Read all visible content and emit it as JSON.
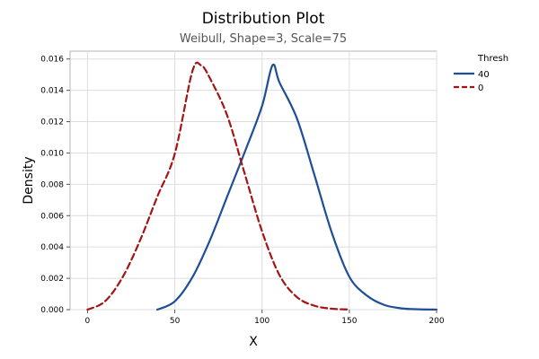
{
  "chart_data": {
    "type": "line",
    "title": "Distribution Plot",
    "subtitle": "Weibull, Shape=3, Scale=75",
    "xlabel": "X",
    "ylabel": "Density",
    "xlim": [
      -10,
      200
    ],
    "ylim": [
      0,
      0.0165
    ],
    "x_ticks": [
      0,
      50,
      100,
      150,
      200
    ],
    "y_ticks": [
      0,
      0.002,
      0.004,
      0.006,
      0.008,
      0.01,
      0.012,
      0.014,
      0.016
    ],
    "x_tick_labels": [
      "0",
      "50",
      "100",
      "150",
      "200"
    ],
    "y_tick_labels": [
      "0.000",
      "0.002",
      "0.004",
      "0.006",
      "0.008",
      "0.010",
      "0.012",
      "0.014",
      "0.016"
    ],
    "grid": true,
    "legend": {
      "title": "Thresh",
      "placement": "right"
    },
    "series": [
      {
        "name": "40",
        "color": "#1f4e96",
        "style": "solid",
        "x": [
          40,
          50,
          60,
          70,
          80,
          90,
          100,
          106,
          110,
          120,
          130,
          140,
          150,
          160,
          170,
          180,
          190,
          200
        ],
        "y": [
          0,
          0.000529,
          0.002051,
          0.004396,
          0.007215,
          0.010034,
          0.012999,
          0.0156,
          0.0145,
          0.0122,
          0.0086,
          0.0049,
          0.0021,
          0.0009,
          0.0003,
          8e-05,
          2e-05,
          3e-06
        ]
      },
      {
        "name": "0",
        "color": "#a31515",
        "style": "dashed",
        "x": [
          0,
          10,
          20,
          30,
          40,
          50,
          60,
          65,
          70,
          80,
          90,
          100,
          110,
          120,
          130,
          140,
          150
        ],
        "y": [
          0,
          0.000529,
          0.002051,
          0.004396,
          0.007215,
          0.009952,
          0.01519,
          0.0156,
          0.0148,
          0.0124,
          0.0087,
          0.005,
          0.0022,
          0.0008,
          0.00025,
          6e-05,
          1e-05
        ]
      }
    ]
  }
}
